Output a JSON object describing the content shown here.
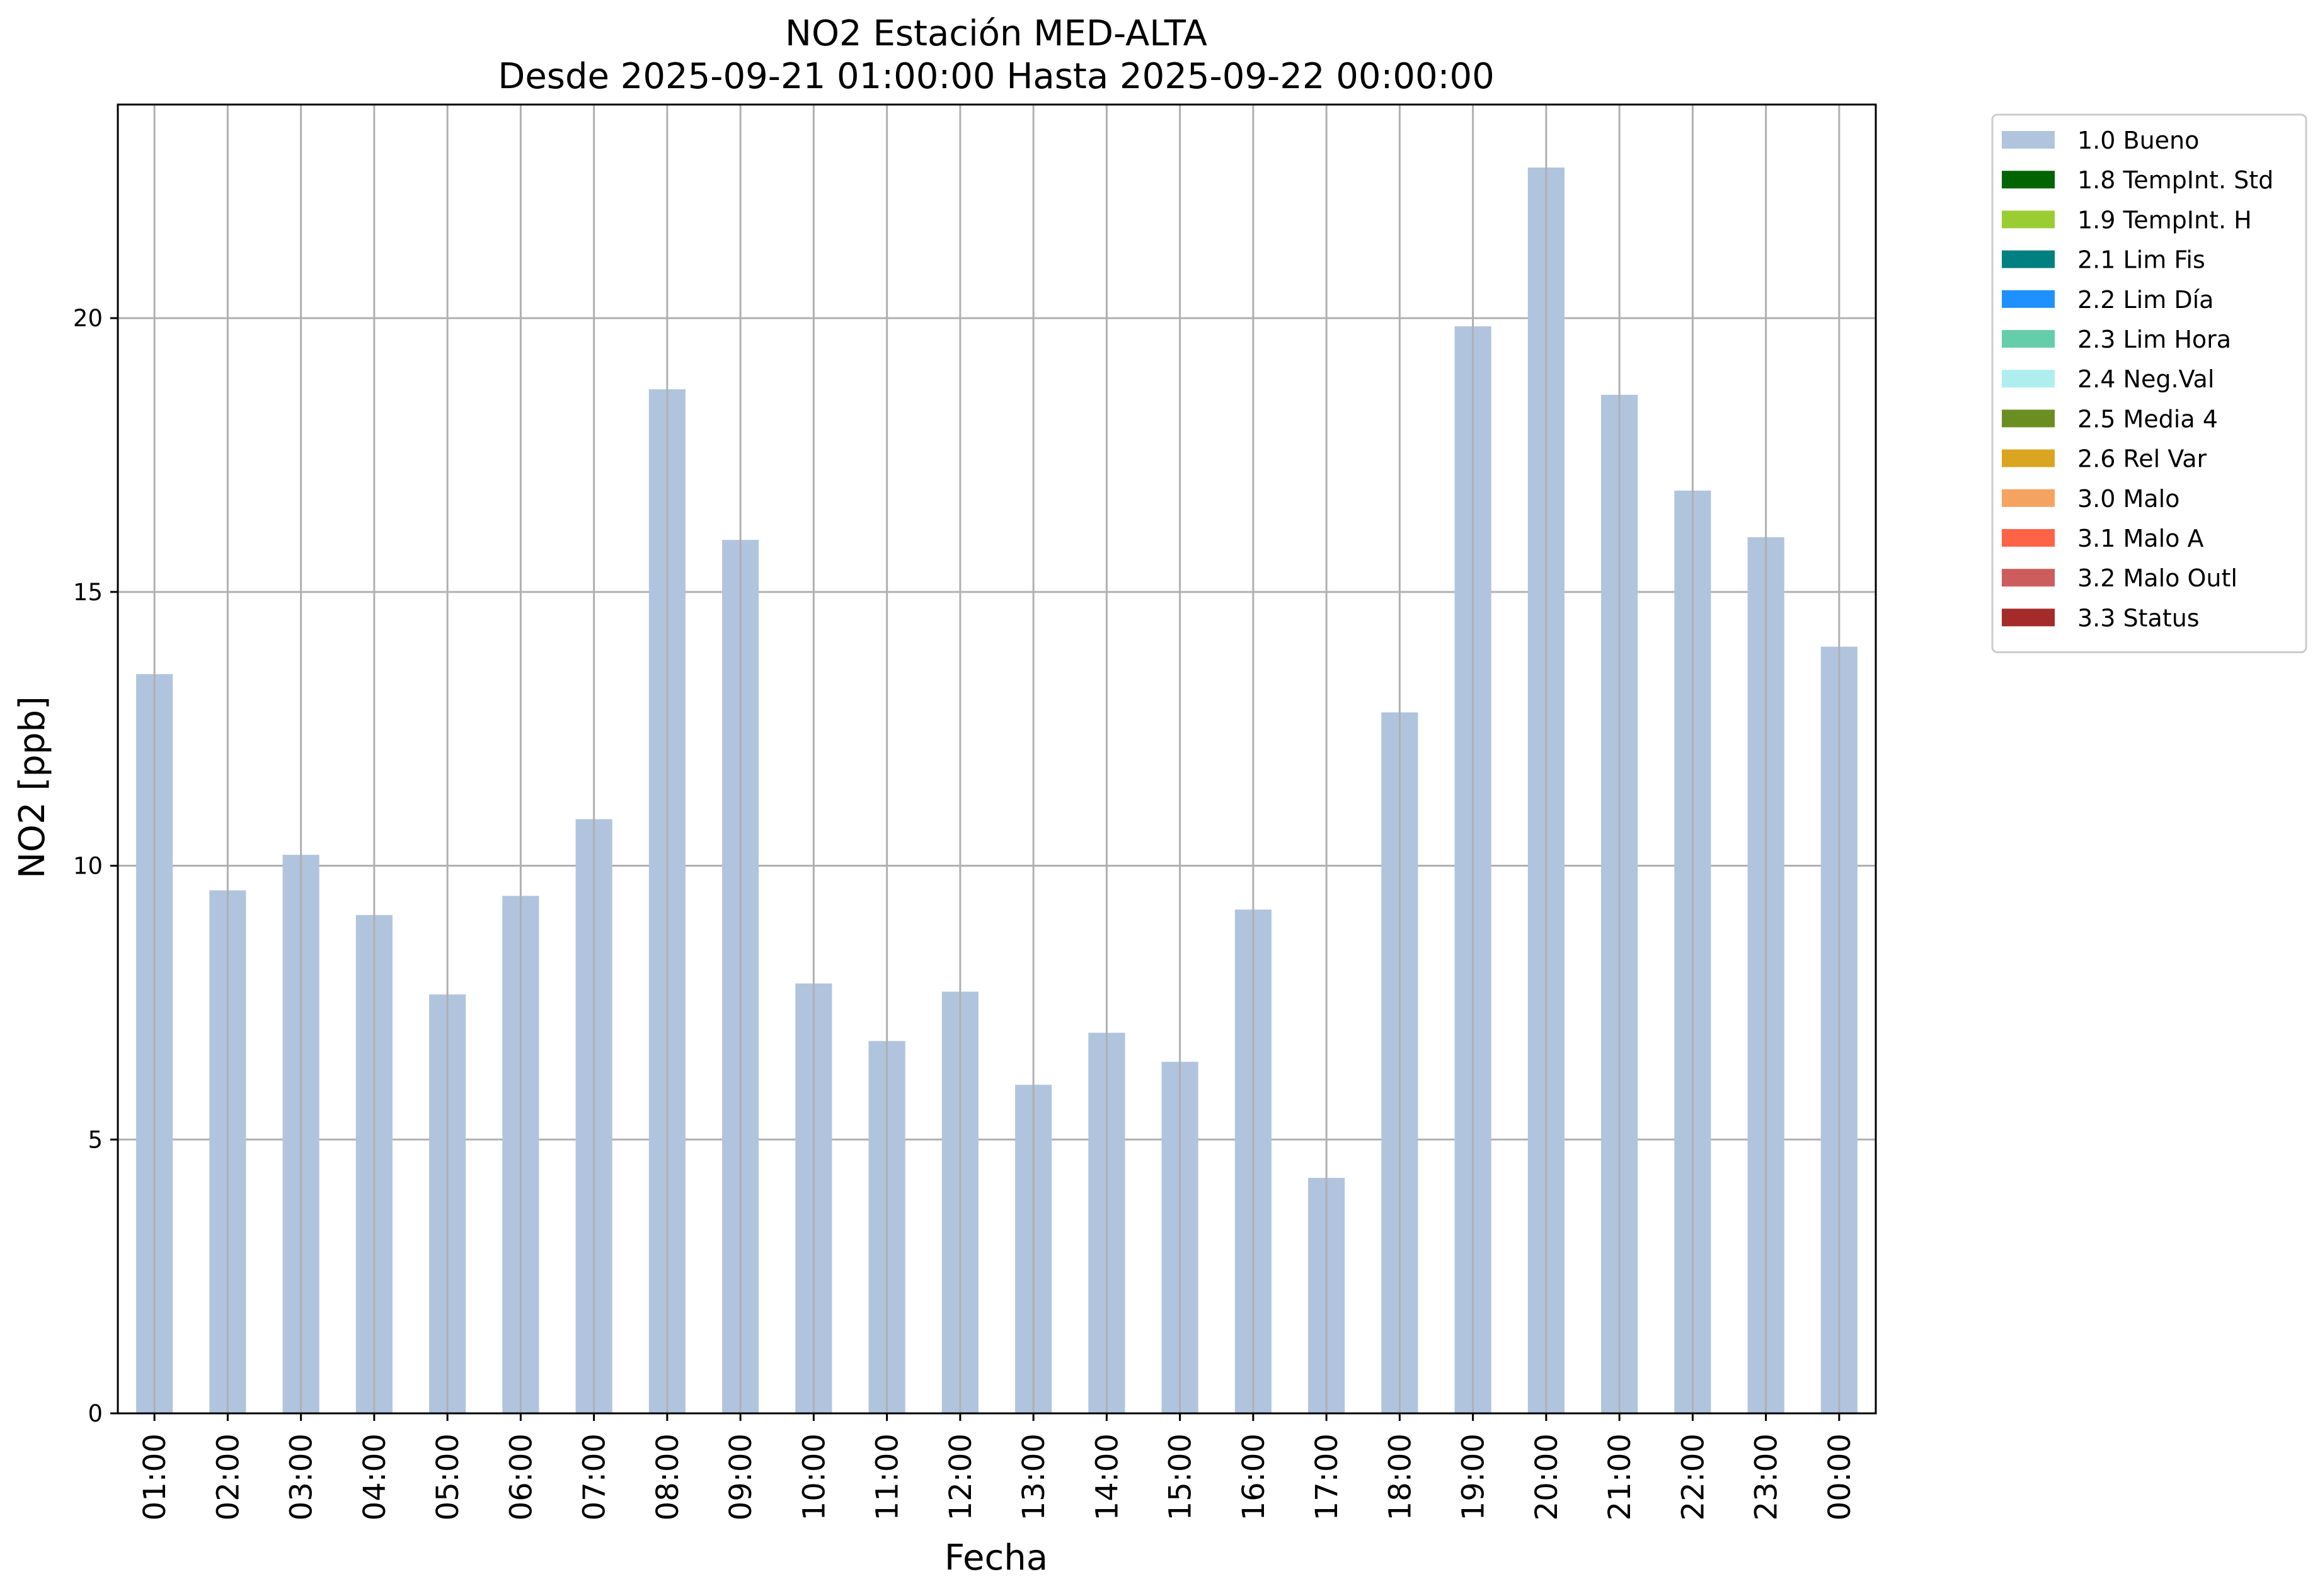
{
  "chart_data": {
    "type": "bar",
    "title": "NO2 Estación MED-ALTA",
    "subtitle": "Desde 2025-09-21 01:00:00 Hasta 2025-09-22 00:00:00",
    "xlabel": "Fecha",
    "ylabel": "NO2 [ppb]",
    "ylim": [
      0,
      23.9
    ],
    "yticks": [
      0,
      5,
      10,
      15,
      20
    ],
    "grid": true,
    "legend_position": "outside-top-right",
    "categories": [
      "01:00",
      "02:00",
      "03:00",
      "04:00",
      "05:00",
      "06:00",
      "07:00",
      "08:00",
      "09:00",
      "10:00",
      "11:00",
      "12:00",
      "13:00",
      "14:00",
      "15:00",
      "16:00",
      "17:00",
      "18:00",
      "19:00",
      "20:00",
      "21:00",
      "22:00",
      "23:00",
      "00:00"
    ],
    "series": [
      {
        "name": "1.0 Bueno",
        "color": "#b0c4de",
        "values": [
          13.5,
          9.55,
          10.2,
          9.1,
          7.65,
          9.45,
          10.85,
          18.7,
          15.95,
          7.85,
          6.8,
          7.7,
          6.0,
          6.95,
          6.42,
          9.2,
          4.3,
          12.8,
          19.85,
          22.75,
          18.6,
          16.85,
          16.0,
          14.0
        ]
      }
    ],
    "legend": [
      {
        "label": "1.0 Bueno",
        "color": "#b0c4de"
      },
      {
        "label": "1.8 TempInt. Std",
        "color": "#006400"
      },
      {
        "label": "1.9 TempInt. H",
        "color": "#9acd32"
      },
      {
        "label": "2.1 Lim Fis",
        "color": "#008080"
      },
      {
        "label": "2.2 Lim Día",
        "color": "#1e90ff"
      },
      {
        "label": "2.3 Lim Hora",
        "color": "#66cdaa"
      },
      {
        "label": "2.4 Neg.Val",
        "color": "#afeeee"
      },
      {
        "label": "2.5 Media 4",
        "color": "#6b8e23"
      },
      {
        "label": "2.6 Rel Var",
        "color": "#daa520"
      },
      {
        "label": "3.0 Malo",
        "color": "#f4a460"
      },
      {
        "label": "3.1 Malo A",
        "color": "#ff6347"
      },
      {
        "label": "3.2 Malo Outl",
        "color": "#cd5c5c"
      },
      {
        "label": "3.3 Status",
        "color": "#a52a2a"
      }
    ]
  }
}
